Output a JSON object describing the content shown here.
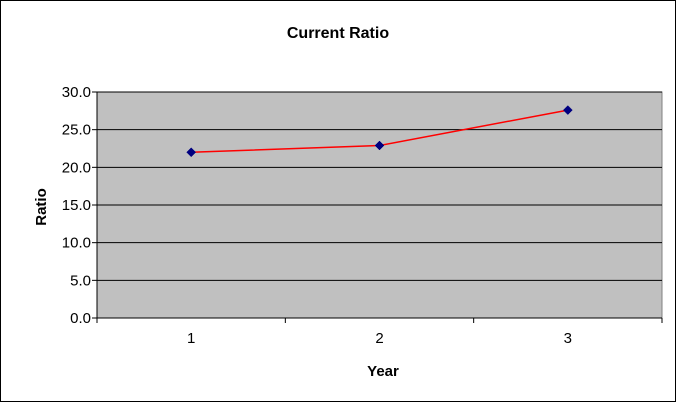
{
  "chart_data": {
    "type": "line",
    "title": "Current Ratio",
    "xlabel": "Year",
    "ylabel": "Ratio",
    "categories": [
      "1",
      "2",
      "3"
    ],
    "series": [
      {
        "values": [
          22.0,
          22.9,
          27.6
        ],
        "color": "#ff0000",
        "marker_color": "#000080",
        "marker": "diamond"
      }
    ],
    "ylim": [
      0,
      30
    ],
    "yticks": [
      "0.0",
      "5.0",
      "10.0",
      "15.0",
      "20.0",
      "25.0",
      "30.0"
    ],
    "grid": true,
    "legend": "none",
    "plot_background": "#c0c0c0"
  }
}
